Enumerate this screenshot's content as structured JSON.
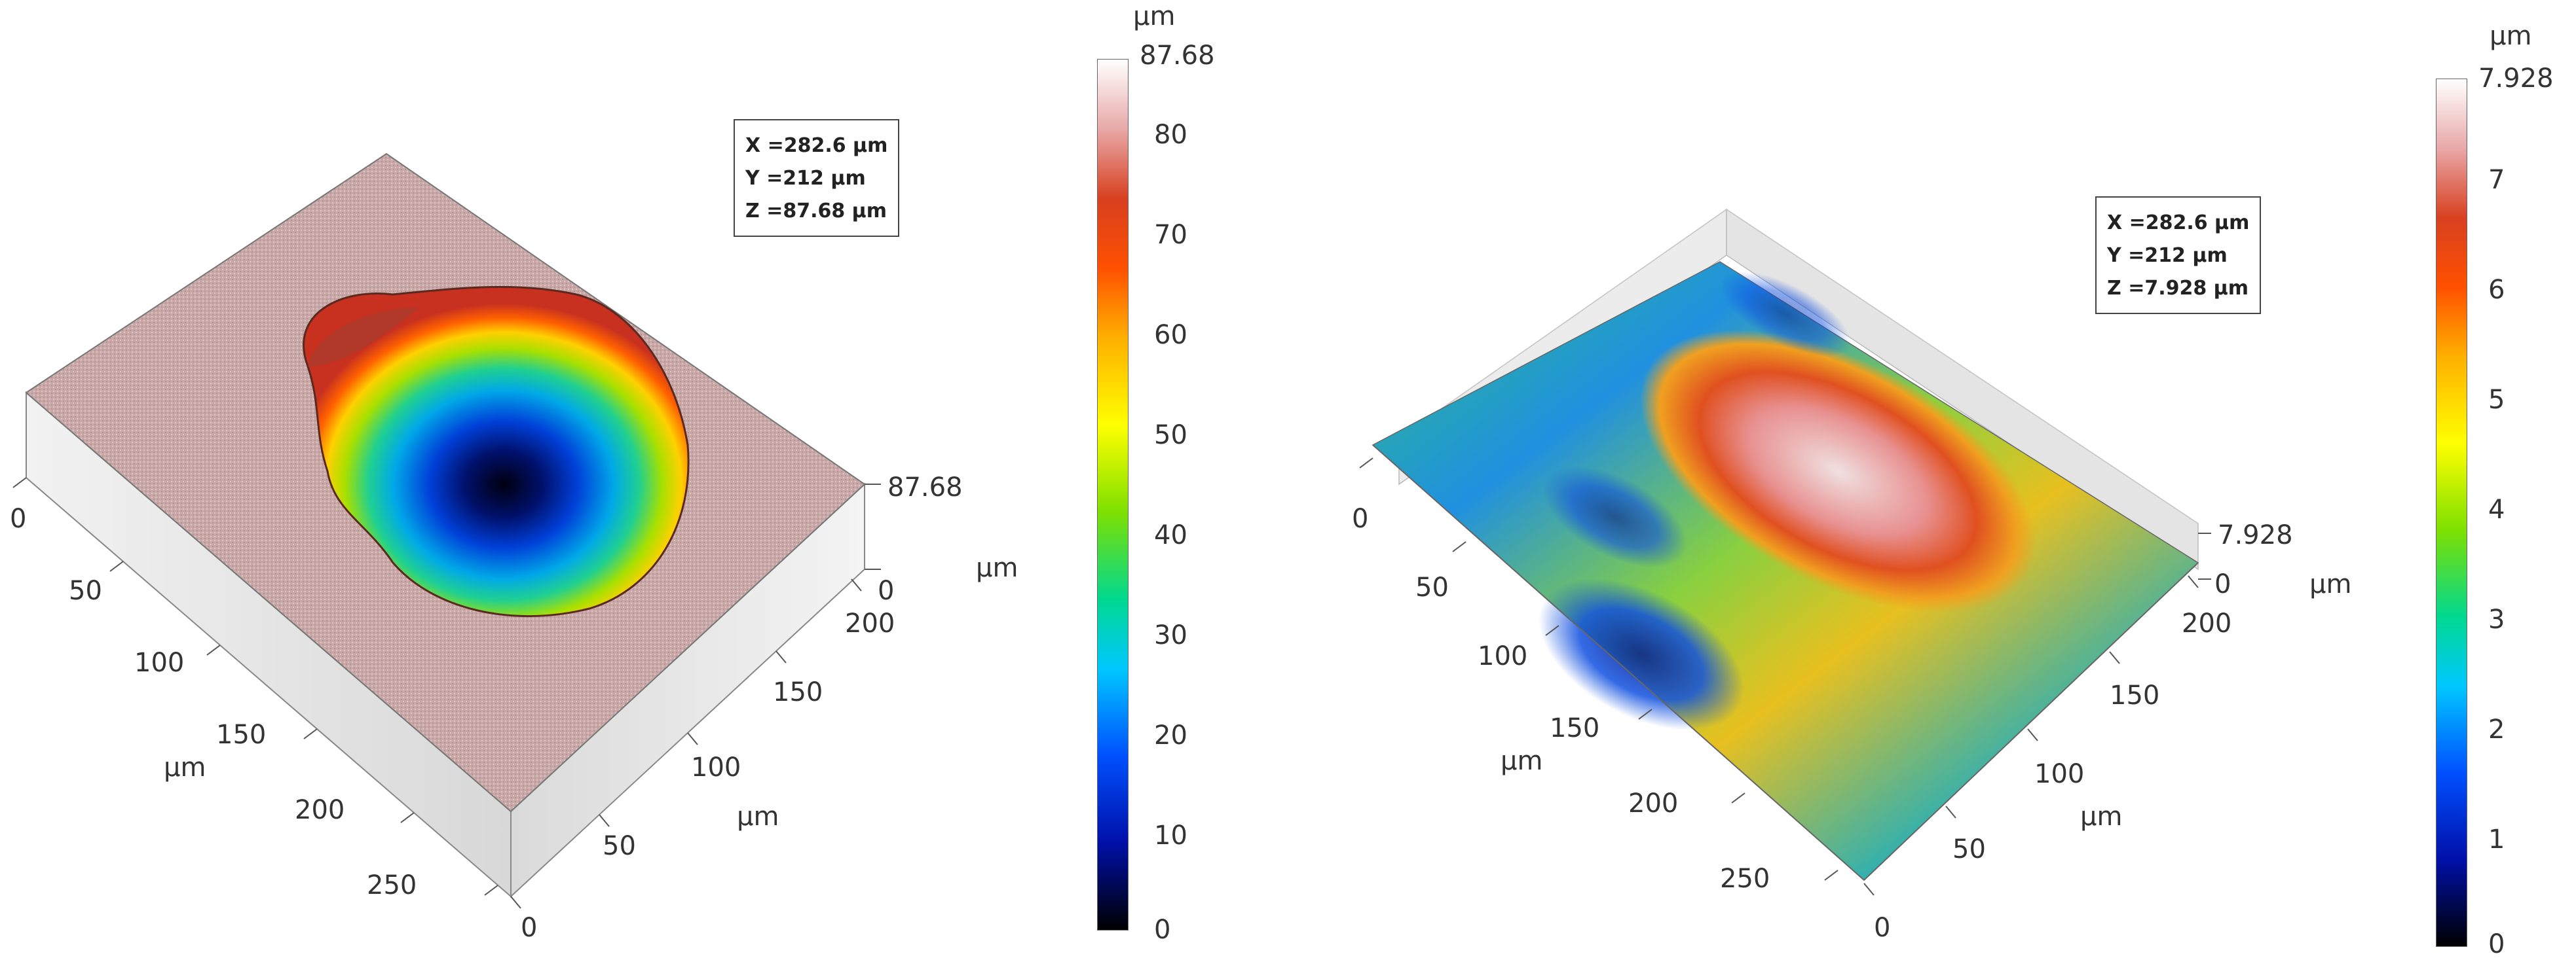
{
  "left": {
    "infobox": {
      "x": "X =282.6 µm",
      "y": "Y =212 µm",
      "z": "Z =87.68 µm"
    },
    "colorbar": {
      "unit": "µm",
      "max": "87.68",
      "ticks": [
        "80",
        "70",
        "60",
        "50",
        "40",
        "30",
        "20",
        "10",
        "0"
      ]
    },
    "axes": {
      "z_max": "87.68",
      "z_min": "0",
      "z_unit": "µm",
      "x_ticks": [
        "0",
        "50",
        "100",
        "150",
        "200",
        "250"
      ],
      "x_unit": "µm",
      "y_ticks": [
        "0",
        "50",
        "100",
        "150",
        "200"
      ],
      "y_unit": "µm"
    }
  },
  "right": {
    "infobox": {
      "x": "X =282.6 µm",
      "y": "Y =212 µm",
      "z": "Z =7.928 µm"
    },
    "colorbar": {
      "unit": "µm",
      "max": "7.928",
      "ticks": [
        "7",
        "6",
        "5",
        "4",
        "3",
        "2",
        "1",
        "0"
      ]
    },
    "axes": {
      "z_max": "7.928",
      "z_min": "0",
      "z_unit": "µm",
      "x_ticks": [
        "0",
        "50",
        "100",
        "150",
        "200",
        "250"
      ],
      "x_unit": "µm",
      "y_ticks": [
        "0",
        "50",
        "100",
        "150",
        "200"
      ],
      "y_unit": "µm"
    }
  }
}
